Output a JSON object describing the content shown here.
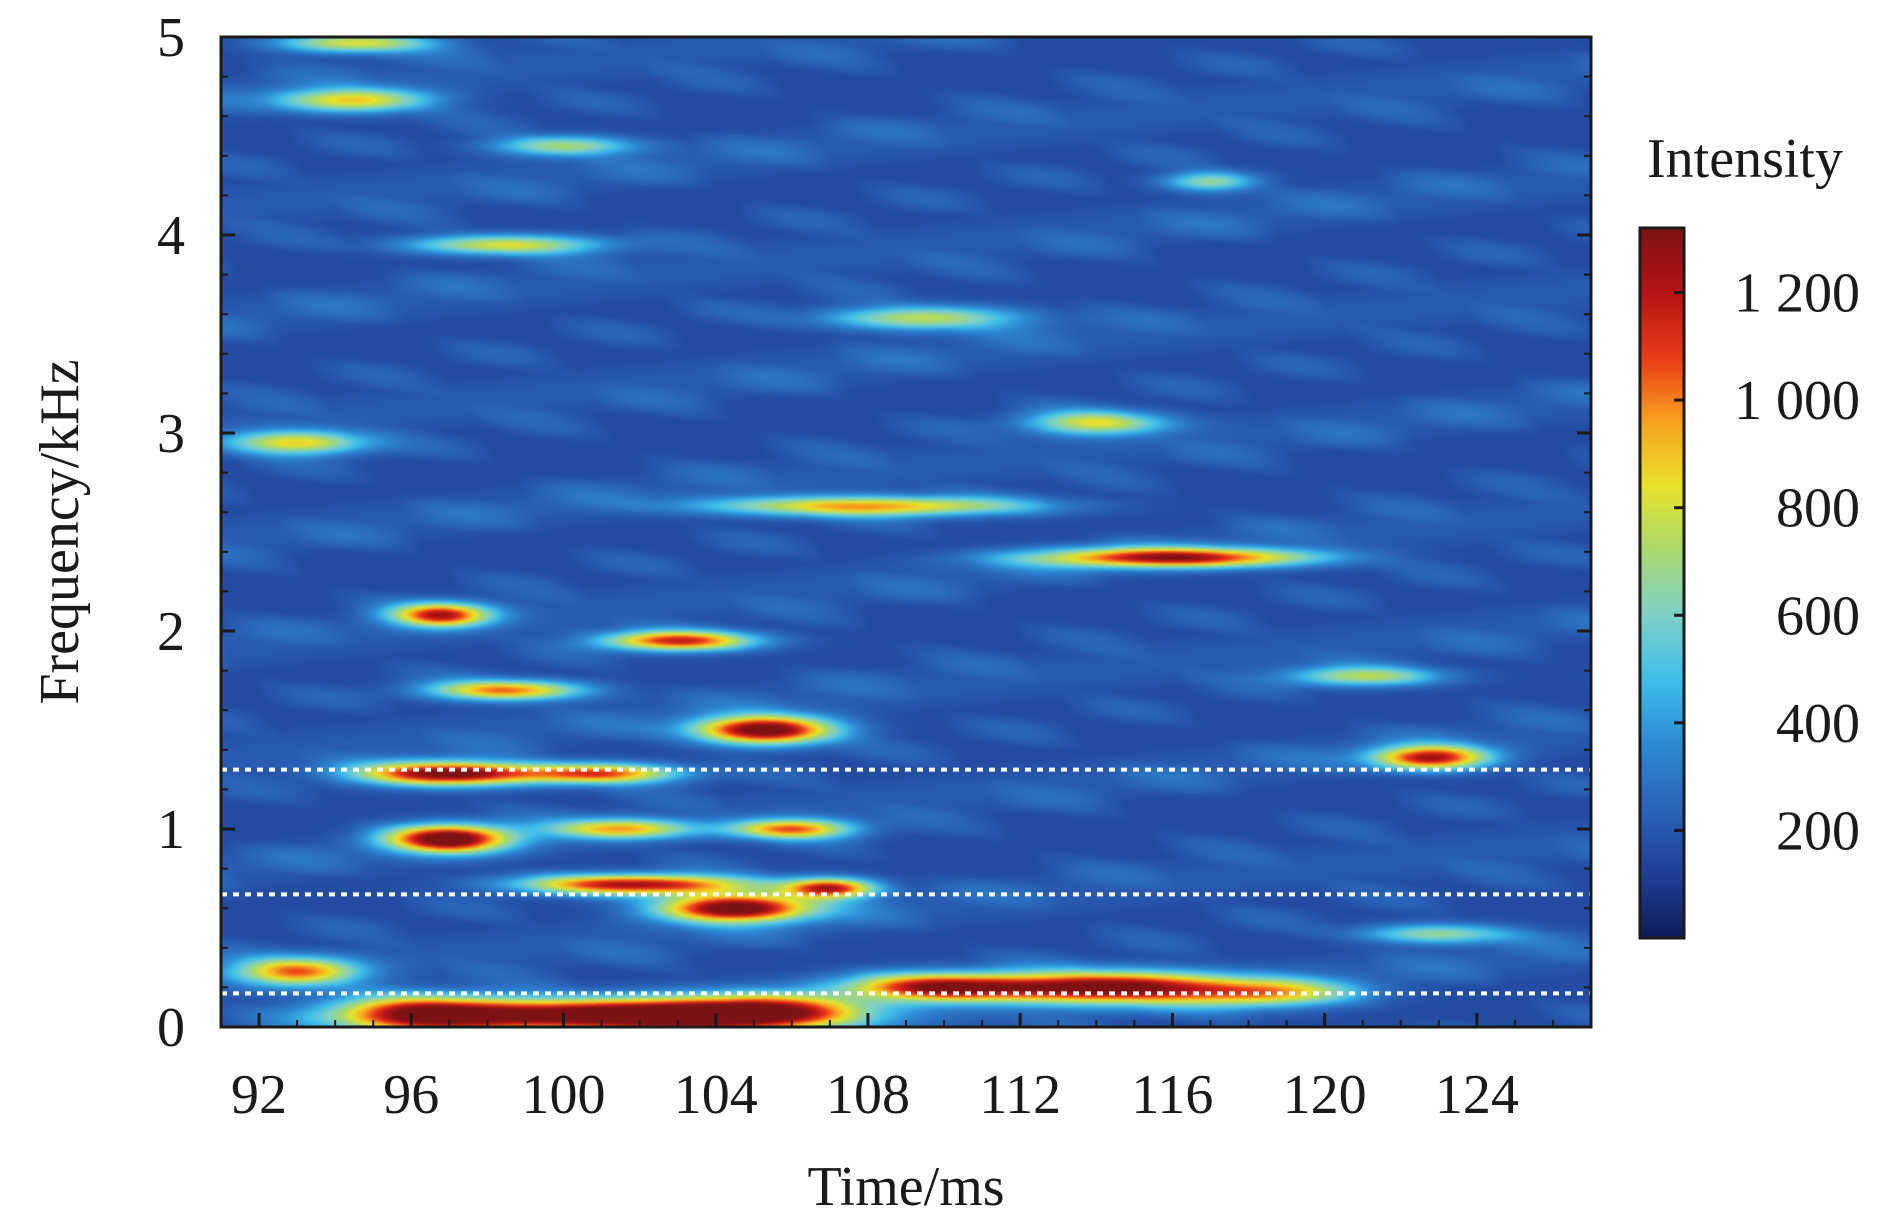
{
  "chart_data": {
    "type": "heatmap",
    "title": "",
    "xlabel": "Time/ms",
    "ylabel": "Frequency/kHz",
    "xlim": [
      91,
      127
    ],
    "ylim": [
      0,
      5
    ],
    "x_ticks": [
      92,
      96,
      100,
      104,
      108,
      112,
      116,
      120,
      124
    ],
    "x_tick_labels": [
      "92",
      "96",
      "100",
      "104",
      "108",
      "112",
      "116",
      "120",
      "124"
    ],
    "y_ticks": [
      0,
      1,
      2,
      3,
      4,
      5
    ],
    "y_tick_labels": [
      "0",
      "1",
      "2",
      "3",
      "4",
      "5"
    ],
    "colorbar": {
      "label": "Intensity",
      "range": [
        0,
        1320
      ],
      "ticks": [
        200,
        400,
        600,
        800,
        1000,
        1200
      ],
      "tick_labels": [
        "200",
        "400",
        "600",
        "800",
        "1 000",
        "1 200"
      ],
      "colormap": [
        "#101c5a",
        "#1f3f96",
        "#2a63b8",
        "#2d8ad4",
        "#3fbde9",
        "#7ed0c6",
        "#a8d86f",
        "#e8e22a",
        "#f7a11e",
        "#ea3a18",
        "#b51415",
        "#7d1214"
      ]
    },
    "reference_lines": [
      {
        "frequency_khz": 1.3,
        "color": "#ffffff",
        "style": "dotted"
      },
      {
        "frequency_khz": 0.67,
        "color": "#ffffff",
        "style": "dotted"
      },
      {
        "frequency_khz": 0.17,
        "color": "#ffffff",
        "style": "dotted"
      }
    ],
    "background_intensity": 160,
    "features": [
      {
        "t": 96.5,
        "f": 0.06,
        "dt": 2.6,
        "df": 0.09,
        "i": 1250
      },
      {
        "t": 101,
        "f": 0.06,
        "dt": 3.0,
        "df": 0.08,
        "i": 1200
      },
      {
        "t": 105,
        "f": 0.07,
        "dt": 2.8,
        "df": 0.09,
        "i": 1250
      },
      {
        "t": 110,
        "f": 0.2,
        "dt": 2.6,
        "df": 0.07,
        "i": 1050
      },
      {
        "t": 114.5,
        "f": 0.2,
        "dt": 3.0,
        "df": 0.08,
        "i": 1150
      },
      {
        "t": 118.5,
        "f": 0.17,
        "dt": 2.2,
        "df": 0.07,
        "i": 650
      },
      {
        "t": 93,
        "f": 0.28,
        "dt": 1.6,
        "df": 0.07,
        "i": 850
      },
      {
        "t": 104.5,
        "f": 0.6,
        "dt": 2.0,
        "df": 0.07,
        "i": 1250
      },
      {
        "t": 102,
        "f": 0.72,
        "dt": 3.0,
        "df": 0.05,
        "i": 1050
      },
      {
        "t": 107,
        "f": 0.7,
        "dt": 1.2,
        "df": 0.05,
        "i": 1000
      },
      {
        "t": 97,
        "f": 0.95,
        "dt": 1.6,
        "df": 0.07,
        "i": 1200
      },
      {
        "t": 101.5,
        "f": 1.0,
        "dt": 1.8,
        "df": 0.05,
        "i": 750
      },
      {
        "t": 106,
        "f": 1.0,
        "dt": 1.6,
        "df": 0.05,
        "i": 850
      },
      {
        "t": 97,
        "f": 1.28,
        "dt": 2.3,
        "df": 0.06,
        "i": 1200
      },
      {
        "t": 101,
        "f": 1.28,
        "dt": 2.0,
        "df": 0.05,
        "i": 900
      },
      {
        "t": 105.3,
        "f": 1.5,
        "dt": 1.8,
        "df": 0.07,
        "i": 1250
      },
      {
        "t": 98.5,
        "f": 1.7,
        "dt": 2.0,
        "df": 0.05,
        "i": 850
      },
      {
        "t": 96.8,
        "f": 2.08,
        "dt": 1.3,
        "df": 0.06,
        "i": 1000
      },
      {
        "t": 103,
        "f": 1.95,
        "dt": 2.0,
        "df": 0.05,
        "i": 950
      },
      {
        "t": 116,
        "f": 2.37,
        "dt": 3.6,
        "df": 0.05,
        "i": 1050
      },
      {
        "t": 108,
        "f": 2.63,
        "dt": 4.0,
        "df": 0.05,
        "i": 800
      },
      {
        "t": 122.8,
        "f": 1.36,
        "dt": 1.5,
        "df": 0.06,
        "i": 1050
      },
      {
        "t": 93,
        "f": 2.95,
        "dt": 1.8,
        "df": 0.06,
        "i": 700
      },
      {
        "t": 94.5,
        "f": 4.68,
        "dt": 2.0,
        "df": 0.06,
        "i": 700
      },
      {
        "t": 94.5,
        "f": 4.97,
        "dt": 2.0,
        "df": 0.05,
        "i": 650
      },
      {
        "t": 98.5,
        "f": 3.95,
        "dt": 2.5,
        "df": 0.05,
        "i": 650
      },
      {
        "t": 109.5,
        "f": 3.58,
        "dt": 2.5,
        "df": 0.06,
        "i": 600
      },
      {
        "t": 114,
        "f": 3.05,
        "dt": 1.8,
        "df": 0.06,
        "i": 650
      },
      {
        "t": 100,
        "f": 4.45,
        "dt": 1.8,
        "df": 0.05,
        "i": 550
      },
      {
        "t": 117,
        "f": 4.27,
        "dt": 1.2,
        "df": 0.05,
        "i": 500
      },
      {
        "t": 121,
        "f": 1.77,
        "dt": 2.0,
        "df": 0.05,
        "i": 550
      },
      {
        "t": 123,
        "f": 0.47,
        "dt": 2.0,
        "df": 0.05,
        "i": 500
      }
    ]
  }
}
